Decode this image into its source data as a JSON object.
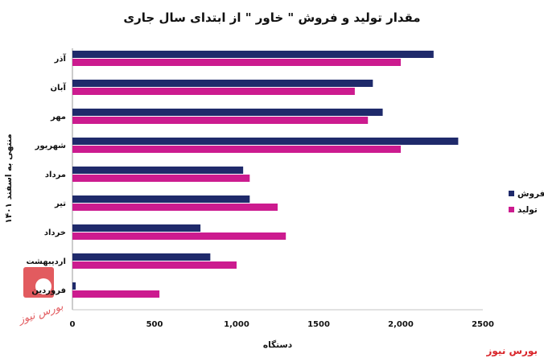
{
  "chart_data": {
    "type": "bar",
    "orientation": "horizontal",
    "title": "مقدار تولید و فروش \" خاور \" از ابتدای سال جاری",
    "xlabel": "دستگاه",
    "ylabel": "منتهی به اسفند ۱۴۰۱",
    "categories": [
      "آذر",
      "آبان",
      "مهر",
      "شهریور",
      "مرداد",
      "تیر",
      "خرداد",
      "اردیبهشت",
      "فروردین"
    ],
    "series": [
      {
        "name": "فروش",
        "color": "#1f2a6b",
        "values": [
          2200,
          1830,
          1890,
          2350,
          1040,
          1080,
          780,
          840,
          20
        ]
      },
      {
        "name": "تولید",
        "color": "#cc1b8f",
        "values": [
          2000,
          1720,
          1800,
          2000,
          1080,
          1250,
          1300,
          1000,
          530
        ]
      }
    ],
    "xlim": [
      0,
      2500
    ],
    "xticks": [
      {
        "value": 0,
        "label": "0"
      },
      {
        "value": 500,
        "label": "500"
      },
      {
        "value": 1000,
        "label": "1,000"
      },
      {
        "value": 1500,
        "label": "1500"
      },
      {
        "value": 2000,
        "label": "2,000"
      },
      {
        "value": 2500,
        "label": "2500"
      }
    ],
    "legend_position": "right",
    "grid": false
  },
  "source": {
    "brand": "بورس نیوز",
    "logo_text": "بورس نیوز"
  }
}
